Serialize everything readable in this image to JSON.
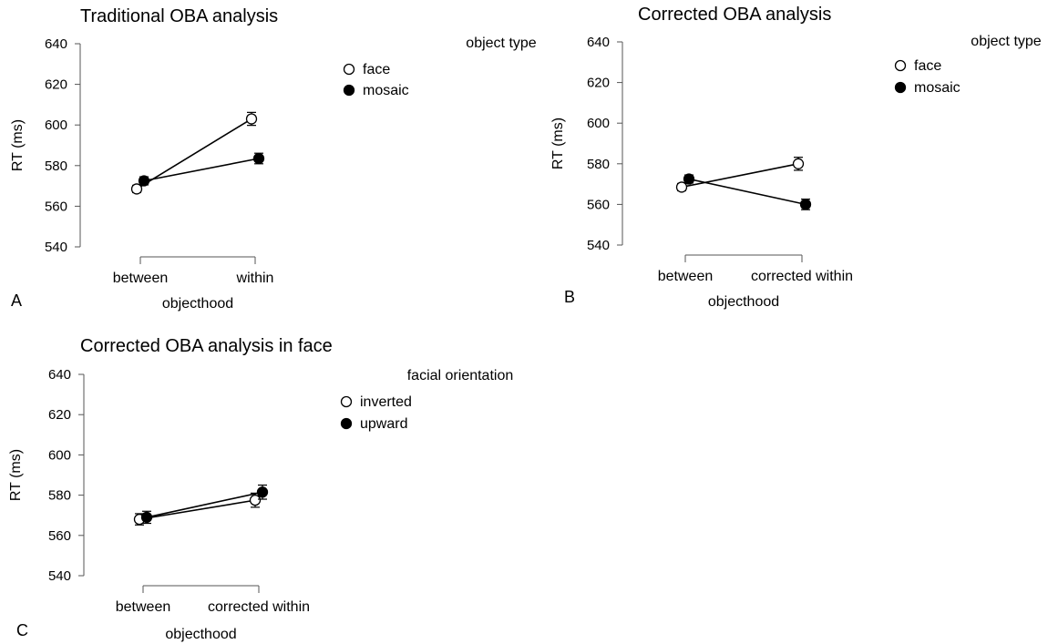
{
  "chart_data": [
    {
      "panel_label": "A",
      "type": "line",
      "title": "Traditional OBA analysis",
      "xlabel": "objecthood",
      "ylabel": "RT (ms)",
      "categories": [
        "between",
        "within"
      ],
      "ylim": [
        540,
        640
      ],
      "yticks": [
        "540",
        "560",
        "580",
        "600",
        "620",
        "640"
      ],
      "legend_title": "object type",
      "series": [
        {
          "name": "face",
          "marker": "open",
          "values": [
            568.5,
            603
          ],
          "err": [
            1.8,
            3.2
          ]
        },
        {
          "name": "mosaic",
          "marker": "filled",
          "values": [
            572.5,
            583.5
          ],
          "err": [
            2.0,
            2.6
          ]
        }
      ]
    },
    {
      "panel_label": "B",
      "type": "line",
      "title": "Corrected OBA analysis",
      "xlabel": "objecthood",
      "ylabel": "RT (ms)",
      "categories": [
        "between",
        "corrected within"
      ],
      "ylim": [
        540,
        640
      ],
      "yticks": [
        "540",
        "560",
        "580",
        "600",
        "620",
        "640"
      ],
      "legend_title": "object type",
      "series": [
        {
          "name": "face",
          "marker": "open",
          "values": [
            568.5,
            580
          ],
          "err": [
            1.8,
            3.2
          ]
        },
        {
          "name": "mosaic",
          "marker": "filled",
          "values": [
            572.5,
            560
          ],
          "err": [
            2.0,
            2.6
          ]
        }
      ]
    },
    {
      "panel_label": "C",
      "type": "line",
      "title": "Corrected OBA analysis in face",
      "xlabel": "objecthood",
      "ylabel": "RT (ms)",
      "categories": [
        "between",
        "corrected within"
      ],
      "ylim": [
        540,
        640
      ],
      "yticks": [
        "540",
        "560",
        "580",
        "600",
        "620",
        "640"
      ],
      "legend_title": "facial orientation",
      "series": [
        {
          "name": "inverted",
          "marker": "open",
          "values": [
            568,
            577.5
          ],
          "err": [
            2.8,
            3.5
          ]
        },
        {
          "name": "upward",
          "marker": "filled",
          "values": [
            569,
            581.5
          ],
          "err": [
            3.0,
            3.5
          ]
        }
      ]
    }
  ]
}
